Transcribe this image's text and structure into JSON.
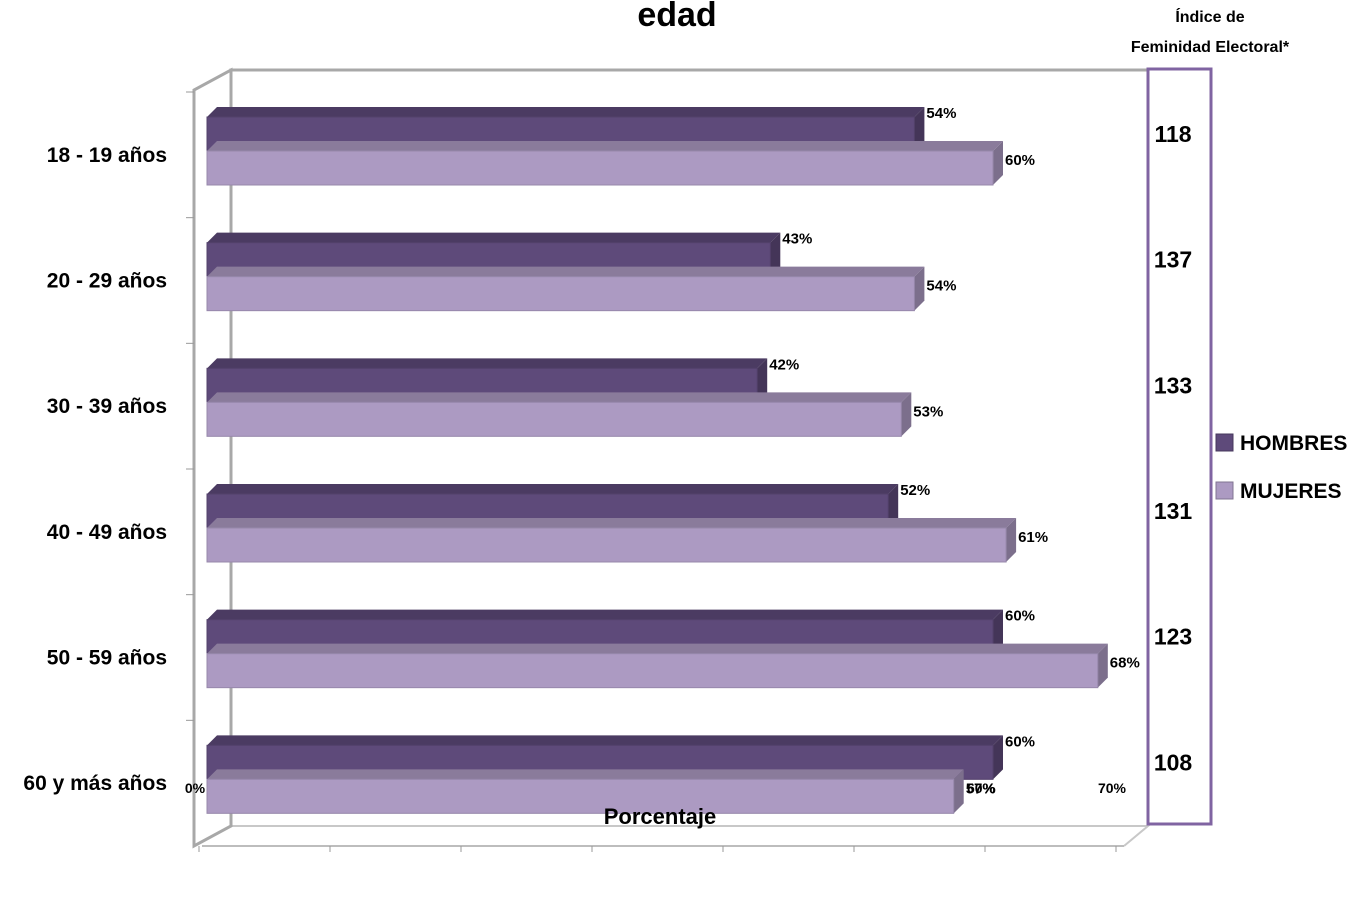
{
  "chart_data": {
    "type": "bar",
    "orientation": "horizontal",
    "title": "edad",
    "xlabel": "Porcentaje",
    "ylabel": "",
    "xlim": [
      0,
      70
    ],
    "xticks": [
      "0%",
      "10%",
      "20%",
      "30%",
      "40%",
      "50%",
      "60%",
      "70%"
    ],
    "categories": [
      "18 - 19 años",
      "20 - 29 años",
      "30 - 39 años",
      "40 - 49 años",
      "50 - 59 años",
      "60 y más años"
    ],
    "series": [
      {
        "name": "HOMBRES",
        "color": "#5e4a7a",
        "values": [
          54,
          43,
          42,
          52,
          60,
          60
        ],
        "labels": [
          "54%",
          "43%",
          "42%",
          "52%",
          "60%",
          "60%"
        ]
      },
      {
        "name": "MUJERES",
        "color": "#ac9ac2",
        "values": [
          60,
          54,
          53,
          61,
          68,
          57
        ],
        "labels": [
          "60%",
          "54%",
          "53%",
          "61%",
          "68%",
          "57%"
        ]
      }
    ],
    "legend_position": "right",
    "side_panel": {
      "title_line1": "Índice de",
      "title_line2": "Feminidad Electoral*",
      "border_color": "#8064a2",
      "values": [
        "118",
        "137",
        "133",
        "131",
        "123",
        "108"
      ]
    }
  }
}
